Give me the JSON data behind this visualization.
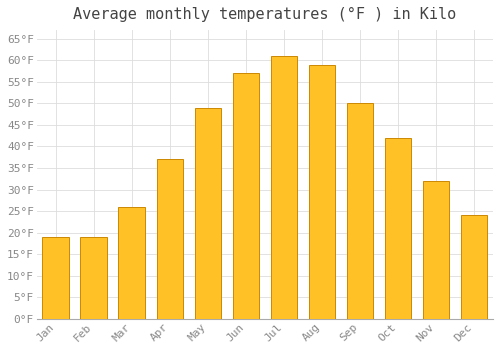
{
  "title": "Average monthly temperatures (°F ) in Kilo",
  "months": [
    "Jan",
    "Feb",
    "Mar",
    "Apr",
    "May",
    "Jun",
    "Jul",
    "Aug",
    "Sep",
    "Oct",
    "Nov",
    "Dec"
  ],
  "values": [
    19,
    19,
    26,
    37,
    49,
    57,
    61,
    59,
    50,
    42,
    32,
    24
  ],
  "bar_color": "#FFC125",
  "bar_edge_color": "#CC8800",
  "background_color": "#FFFFFF",
  "grid_color": "#DDDDDD",
  "ylim": [
    0,
    67
  ],
  "yticks": [
    0,
    5,
    10,
    15,
    20,
    25,
    30,
    35,
    40,
    45,
    50,
    55,
    60,
    65
  ],
  "title_fontsize": 11,
  "tick_fontsize": 8,
  "tick_color": "#888888",
  "font_family": "monospace"
}
